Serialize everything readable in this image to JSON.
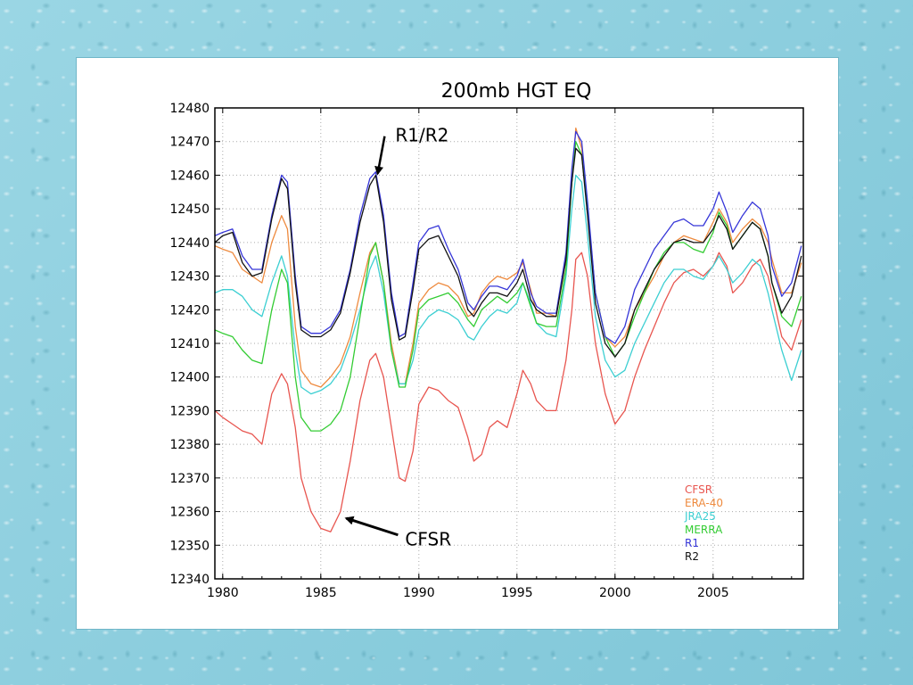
{
  "chart_data": {
    "type": "line",
    "title": "200mb HGT EQ",
    "xlabel": "",
    "ylabel": "",
    "xlim": [
      1979.6,
      2009.6
    ],
    "ylim": [
      12340,
      12480
    ],
    "xticks": [
      1980,
      1985,
      1990,
      1995,
      2000,
      2005
    ],
    "yticks": [
      12340,
      12350,
      12360,
      12370,
      12380,
      12390,
      12400,
      12410,
      12420,
      12430,
      12440,
      12450,
      12460,
      12470,
      12480
    ],
    "grid": true,
    "legend_position": "bottom-right",
    "x": [
      1979.6,
      1980.0,
      1980.5,
      1981.0,
      1981.5,
      1982.0,
      1982.5,
      1983.0,
      1983.3,
      1983.7,
      1984.0,
      1984.5,
      1985.0,
      1985.5,
      1986.0,
      1986.5,
      1987.0,
      1987.5,
      1987.8,
      1988.2,
      1988.6,
      1989.0,
      1989.3,
      1989.7,
      1990.0,
      1990.5,
      1991.0,
      1991.5,
      1992.0,
      1992.5,
      1992.8,
      1993.2,
      1993.6,
      1994.0,
      1994.5,
      1995.0,
      1995.3,
      1995.7,
      1996.0,
      1996.5,
      1997.0,
      1997.5,
      1997.8,
      1998.0,
      1998.3,
      1998.6,
      1999.0,
      1999.5,
      2000.0,
      2000.5,
      2001.0,
      2001.5,
      2002.0,
      2002.5,
      2003.0,
      2003.5,
      2004.0,
      2004.5,
      2005.0,
      2005.3,
      2005.7,
      2006.0,
      2006.5,
      2007.0,
      2007.4,
      2007.8,
      2008.0,
      2008.5,
      2009.0,
      2009.5
    ],
    "series": [
      {
        "name": "CFSR",
        "color": "#e8554f",
        "values": [
          12390,
          12388,
          12386,
          12384,
          12383,
          12380,
          12395,
          12401,
          12398,
          12385,
          12370,
          12360,
          12355,
          12354,
          12360,
          12375,
          12393,
          12405,
          12407,
          12400,
          12385,
          12370,
          12369,
          12378,
          12392,
          12397,
          12396,
          12393,
          12391,
          12382,
          12375,
          12377,
          12385,
          12387,
          12385,
          12395,
          12402,
          12398,
          12393,
          12390,
          12390,
          12405,
          12420,
          12435,
          12437,
          12430,
          12410,
          12395,
          12386,
          12390,
          12400,
          12408,
          12415,
          12422,
          12428,
          12431,
          12432,
          12430,
          12433,
          12437,
          12433,
          12425,
          12428,
          12433,
          12435,
          12430,
          12425,
          12412,
          12408,
          12417
        ]
      },
      {
        "name": "ERA-40",
        "color": "#ee8a3e",
        "values": [
          12439,
          12438,
          12437,
          12432,
          12430,
          12428,
          12440,
          12448,
          12444,
          12415,
          12402,
          12398,
          12397,
          12400,
          12404,
          12412,
          12425,
          12437,
          12440,
          12428,
          12410,
          12398,
          12398,
          12410,
          12422,
          12426,
          12428,
          12427,
          12424,
          12418,
          12419,
          12425,
          12428,
          12430,
          12429,
          12431,
          12434,
          12426,
          12419,
          12419,
          12418,
          12435,
          12458,
          12474,
          12468,
          12450,
          12425,
          12412,
          12409,
          12412,
          12420,
          12425,
          12430,
          12436,
          12440,
          12442,
          12441,
          12440,
          12446,
          12450,
          12446,
          12440,
          12444,
          12447,
          12445,
          12440,
          12435,
          12425,
          12425,
          12434
        ]
      },
      {
        "name": "JRA25",
        "color": "#3ccfd2",
        "values": [
          12425,
          12426,
          12426,
          12424,
          12420,
          12418,
          12428,
          12436,
          12430,
          12408,
          12397,
          12395,
          12396,
          12398,
          12402,
          12410,
          12420,
          12432,
          12436,
          12425,
          12408,
          12398,
          12398,
          12405,
          12414,
          12418,
          12420,
          12419,
          12417,
          12412,
          12411,
          12415,
          12418,
          12420,
          12419,
          12422,
          12428,
          12422,
          12416,
          12413,
          12412,
          12430,
          12450,
          12460,
          12458,
          12442,
          12418,
          12405,
          12400,
          12402,
          12410,
          12416,
          12422,
          12428,
          12432,
          12432,
          12430,
          12429,
          12433,
          12436,
          12432,
          12428,
          12431,
          12435,
          12433,
          12425,
          12420,
          12408,
          12399,
          12408
        ]
      },
      {
        "name": "MERRA",
        "color": "#33cc33",
        "values": [
          12414,
          12413,
          12412,
          12408,
          12405,
          12404,
          12420,
          12432,
          12428,
          12400,
          12388,
          12384,
          12384,
          12386,
          12390,
          12400,
          12418,
          12436,
          12440,
          12428,
          12408,
          12397,
          12397,
          12408,
          12420,
          12423,
          12424,
          12425,
          12422,
          12417,
          12415,
          12420,
          12422,
          12424,
          12422,
          12425,
          12428,
          12421,
          12416,
          12415,
          12415,
          12432,
          12458,
          12470,
          12466,
          12450,
          12425,
          12412,
          12406,
          12410,
          12418,
          12425,
          12432,
          12437,
          12440,
          12440,
          12438,
          12437,
          12443,
          12449,
          12445,
          12438,
          12442,
          12446,
          12444,
          12436,
          12428,
          12418,
          12415,
          12424
        ]
      },
      {
        "name": "R1",
        "color": "#3636d8",
        "values": [
          12442,
          12443,
          12444,
          12436,
          12432,
          12432,
          12448,
          12460,
          12458,
          12430,
          12415,
          12413,
          12413,
          12415,
          12420,
          12432,
          12448,
          12459,
          12461,
          12448,
          12425,
          12412,
          12413,
          12428,
          12440,
          12444,
          12445,
          12438,
          12432,
          12422,
          12420,
          12424,
          12427,
          12427,
          12426,
          12430,
          12435,
          12425,
          12421,
          12419,
          12419,
          12437,
          12462,
          12473,
          12470,
          12452,
          12425,
          12412,
          12410,
          12415,
          12426,
          12432,
          12438,
          12442,
          12446,
          12447,
          12445,
          12445,
          12450,
          12455,
          12449,
          12443,
          12448,
          12452,
          12450,
          12442,
          12433,
          12424,
          12428,
          12439
        ]
      },
      {
        "name": "R2",
        "color": "#111111",
        "values": [
          12440,
          12442,
          12443,
          12434,
          12430,
          12431,
          12447,
          12459,
          12456,
          12428,
          12414,
          12412,
          12412,
          12414,
          12419,
          12431,
          12446,
          12457,
          12460,
          12446,
          12423,
          12411,
          12412,
          12426,
          12438,
          12441,
          12442,
          12436,
          12430,
          12420,
          12418,
          12422,
          12425,
          12425,
          12424,
          12428,
          12432,
          12423,
          12420,
          12418,
          12418,
          12435,
          12458,
          12468,
          12466,
          12448,
          12422,
          12410,
          12406,
          12410,
          12420,
          12426,
          12432,
          12436,
          12440,
          12441,
          12440,
          12440,
          12444,
          12448,
          12444,
          12438,
          12442,
          12446,
          12444,
          12436,
          12428,
          12419,
          12424,
          12436
        ]
      }
    ],
    "annotations": [
      {
        "text": "R1/R2",
        "x": 1988.8,
        "y": 12470
      },
      {
        "text": "CFSR",
        "x": 1989.3,
        "y": 12352
      }
    ]
  }
}
